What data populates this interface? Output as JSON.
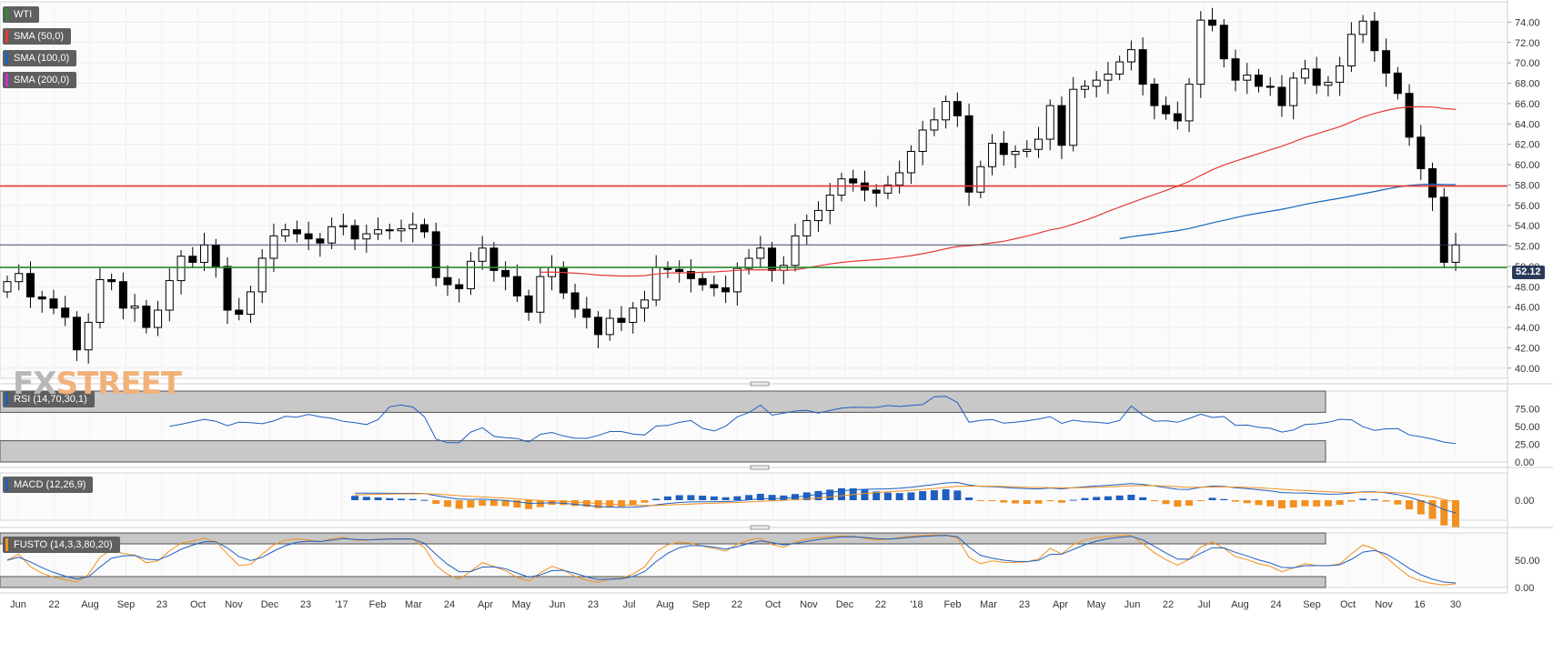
{
  "legend": [
    {
      "label": "WTI",
      "color": "#2e8b2e"
    },
    {
      "label": "SMA (50,0)",
      "color": "#e53935"
    },
    {
      "label": "SMA (100,0)",
      "color": "#1565c0"
    },
    {
      "label": "SMA (200,0)",
      "color": "#d12fd1"
    }
  ],
  "watermark": {
    "part1": "FX",
    "part2": "STREET"
  },
  "last_price": "52.12",
  "panels": {
    "rsi": {
      "label": "RSI (14,70,30,1)"
    },
    "macd": {
      "label": "MACD (12,26,9)"
    },
    "fusto": {
      "label": "FUSTO (14,3,3,80,20)"
    }
  },
  "colors": {
    "up_candle": "#ffffff",
    "down_candle": "#000000",
    "sma50": "#e53935",
    "sma100": "#1565c0",
    "support_line": "#2e8b2e",
    "resistance_line": "#e53935",
    "macd_pos": "#1f5fbf",
    "macd_neg": "#f29120",
    "osc_blue": "#1f5fbf",
    "osc_orange": "#f29120"
  },
  "chart_data": [
    {
      "type": "candlestick",
      "title": "WTI",
      "ylim": [
        39,
        76
      ],
      "y_ticks": [
        "40.00",
        "42.00",
        "44.00",
        "46.00",
        "48.00",
        "50.00",
        "52.00",
        "54.00",
        "56.00",
        "58.00",
        "60.00",
        "62.00",
        "64.00",
        "66.00",
        "68.00",
        "70.00",
        "72.00",
        "74.00"
      ],
      "x_labels": [
        "Jun",
        "22",
        "Aug",
        "Sep",
        "23",
        "Oct",
        "Nov",
        "Dec",
        "23",
        "'17",
        "Feb",
        "Mar",
        "24",
        "Apr",
        "May",
        "Jun",
        "23",
        "Jul",
        "Aug",
        "Sep",
        "22",
        "Oct",
        "Nov",
        "Dec",
        "22",
        "'18",
        "Feb",
        "Mar",
        "23",
        "Apr",
        "May",
        "Jun",
        "22",
        "Jul",
        "Aug",
        "24",
        "Sep",
        "Oct",
        "Nov",
        "16",
        "30"
      ],
      "horizontal_lines": [
        {
          "value": 57.9,
          "color": "red"
        },
        {
          "value": 49.9,
          "color": "green"
        },
        {
          "value": 52.12,
          "color": "navy"
        }
      ],
      "closes": [
        48.5,
        49.3,
        47.0,
        46.8,
        45.9,
        45.0,
        41.8,
        44.5,
        48.7,
        48.5,
        45.9,
        46.1,
        44.0,
        45.7,
        48.6,
        51.0,
        50.4,
        52.1,
        50.0,
        45.7,
        45.3,
        47.5,
        50.8,
        53.0,
        53.6,
        53.2,
        52.7,
        52.3,
        53.9,
        54.0,
        52.7,
        53.2,
        53.6,
        53.5,
        53.7,
        54.1,
        53.4,
        48.9,
        48.2,
        47.8,
        50.5,
        51.8,
        49.6,
        49.0,
        47.1,
        45.5,
        49.0,
        49.9,
        47.4,
        45.8,
        45.0,
        43.3,
        44.9,
        44.5,
        45.9,
        46.7,
        49.9,
        49.7,
        49.5,
        48.8,
        48.2,
        47.9,
        47.5,
        49.8,
        50.8,
        51.8,
        49.6,
        50.1,
        53.0,
        54.5,
        55.5,
        57.0,
        58.6,
        58.2,
        57.5,
        57.2,
        58.0,
        59.2,
        61.3,
        63.4,
        64.4,
        66.2,
        64.8,
        57.3,
        59.8,
        62.1,
        61.0,
        61.3,
        61.5,
        62.5,
        65.8,
        61.9,
        67.4,
        67.7,
        68.3,
        68.9,
        70.1,
        71.3,
        67.9,
        65.8,
        65.0,
        64.3,
        67.9,
        74.2,
        73.7,
        70.4,
        68.3,
        68.8,
        67.7,
        67.6,
        65.8,
        68.5,
        69.4,
        67.8,
        68.1,
        69.7,
        72.8,
        74.1,
        71.2,
        69.0,
        67.0,
        62.7,
        59.6,
        56.8,
        50.4,
        52.1
      ],
      "sma50_start_index": 46,
      "sma100_start_index": 96
    },
    {
      "type": "line",
      "title": "RSI (14,70,30,1)",
      "ylim": [
        0,
        100
      ],
      "y_ticks": [
        "0.00",
        "25.00",
        "50.00",
        "75.00"
      ],
      "levels": [
        70,
        30
      ]
    },
    {
      "type": "bar",
      "title": "MACD (12,26,9)",
      "y_ticks": [
        "0.00"
      ]
    },
    {
      "type": "line",
      "title": "FUSTO (14,3,3,80,20)",
      "ylim": [
        0,
        100
      ],
      "y_ticks": [
        "0.00",
        "50.00"
      ],
      "levels": [
        80,
        20
      ]
    }
  ]
}
